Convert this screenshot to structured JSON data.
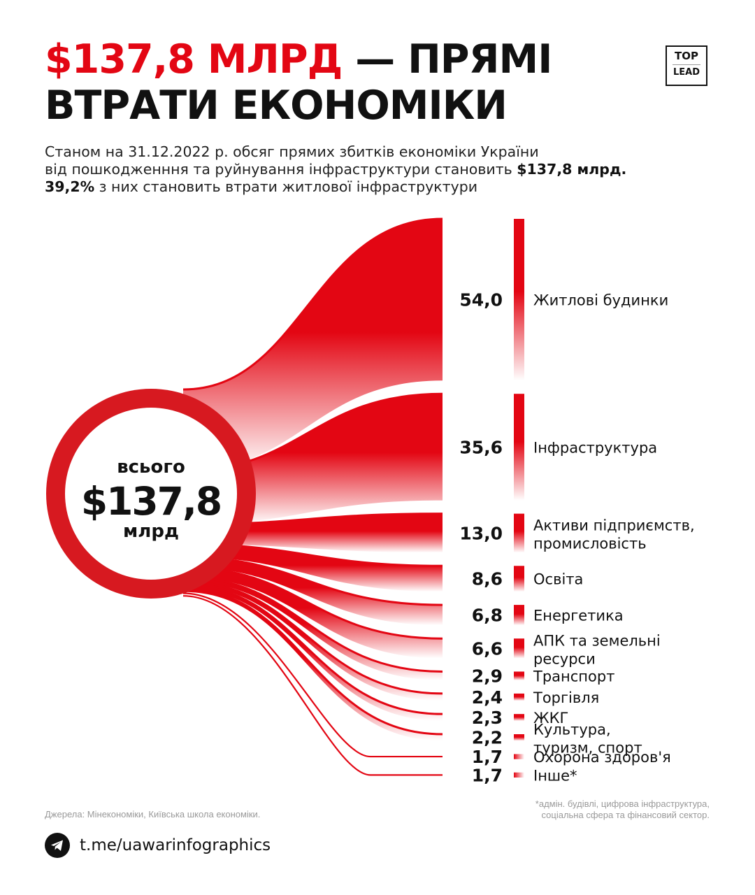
{
  "header": {
    "title_accent": "$137,8 МЛРД",
    "title_rest": " — ПРЯМІ",
    "title_line2": "ВТРАТИ ЕКОНОМІКИ",
    "logo_top": "TOP",
    "logo_bottom": "LEAD"
  },
  "subtitle": {
    "line1": "Станом на 31.12.2022 р. обсяг прямих збитків економіки України",
    "line2_text": "від пошкодженння та руйнування інфраструктури становить ",
    "line2_bold": "$137,8 млрд.",
    "line3_bold": "39,2%",
    "line3_text": " з них становить втрати житлової інфраструктури"
  },
  "total": {
    "label_top": "всього",
    "value": "$137,8",
    "label_bottom": "млрд"
  },
  "chart_data": {
    "type": "sankey",
    "title": "$137,8 МЛРД — ПРЯМІ ВТРАТИ ЕКОНОМІКИ",
    "unit": "млрд $",
    "total": 137.8,
    "categories": [
      {
        "label": "Житлові будинки",
        "value": 54.0,
        "value_label": "54,0"
      },
      {
        "label": "Інфраструктура",
        "value": 35.6,
        "value_label": "35,6"
      },
      {
        "label": "Активи підприємств, промисловість",
        "value": 13.0,
        "value_label": "13,0"
      },
      {
        "label": "Освіта",
        "value": 8.6,
        "value_label": "8,6"
      },
      {
        "label": "Енергетика",
        "value": 6.8,
        "value_label": "6,8"
      },
      {
        "label": "АПК та земельні ресурси",
        "value": 6.6,
        "value_label": "6,6"
      },
      {
        "label": "Транспорт",
        "value": 2.9,
        "value_label": "2,9"
      },
      {
        "label": "Торгівля",
        "value": 2.4,
        "value_label": "2,4"
      },
      {
        "label": "ЖКГ",
        "value": 2.3,
        "value_label": "2,3"
      },
      {
        "label": "Культура, туризм, спорт",
        "value": 2.2,
        "value_label": "2,2"
      },
      {
        "label": "Охорона здоров'я",
        "value": 1.7,
        "value_label": "1,7"
      },
      {
        "label": "Інше*",
        "value": 1.7,
        "value_label": "1,7"
      }
    ],
    "colors": {
      "accent": "#e30613",
      "ring": "#d71920"
    }
  },
  "footer": {
    "footnote_line1": "*адмін. будівлі, цифрова інфраструктура,",
    "footnote_line2": "соціальна сфера та фінансовий сектор.",
    "sources": "Джерела: Мінекономіки, Київська школа економіки.",
    "telegram_icon": "telegram-icon",
    "link": "t.me/uawarinfographics"
  }
}
